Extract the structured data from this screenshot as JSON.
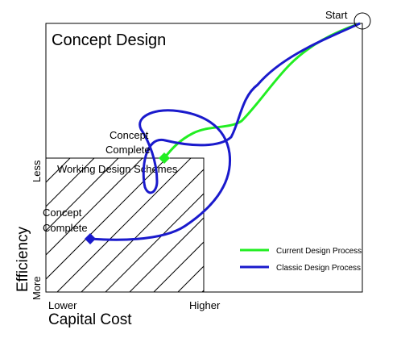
{
  "diagram": {
    "title": "Concept Design",
    "start_label": "Start",
    "working_area_label": "Working Design Schemes",
    "concept_complete_current": [
      "Concept",
      "Complete"
    ],
    "concept_complete_classic": [
      "Concept",
      "Complete"
    ],
    "y_axis": {
      "label": "Efficiency",
      "top": "Less",
      "bottom": "More"
    },
    "x_axis": {
      "label": "Capital Cost",
      "left": "Lower",
      "right": "Higher"
    },
    "legend": [
      {
        "name": "Current Design Process",
        "color": "#22ee22",
        "line": "current"
      },
      {
        "name": "Classic Design Process",
        "color": "#1a1acc",
        "line": "classic"
      }
    ],
    "colors": {
      "current": "#22ee22",
      "classic": "#1a1acc",
      "frame": "#000000",
      "hatch": "#000000"
    },
    "icons": {
      "start": "circle-marker",
      "current_end": "green-diamond-marker",
      "classic_end": "blue-diamond-marker"
    }
  }
}
